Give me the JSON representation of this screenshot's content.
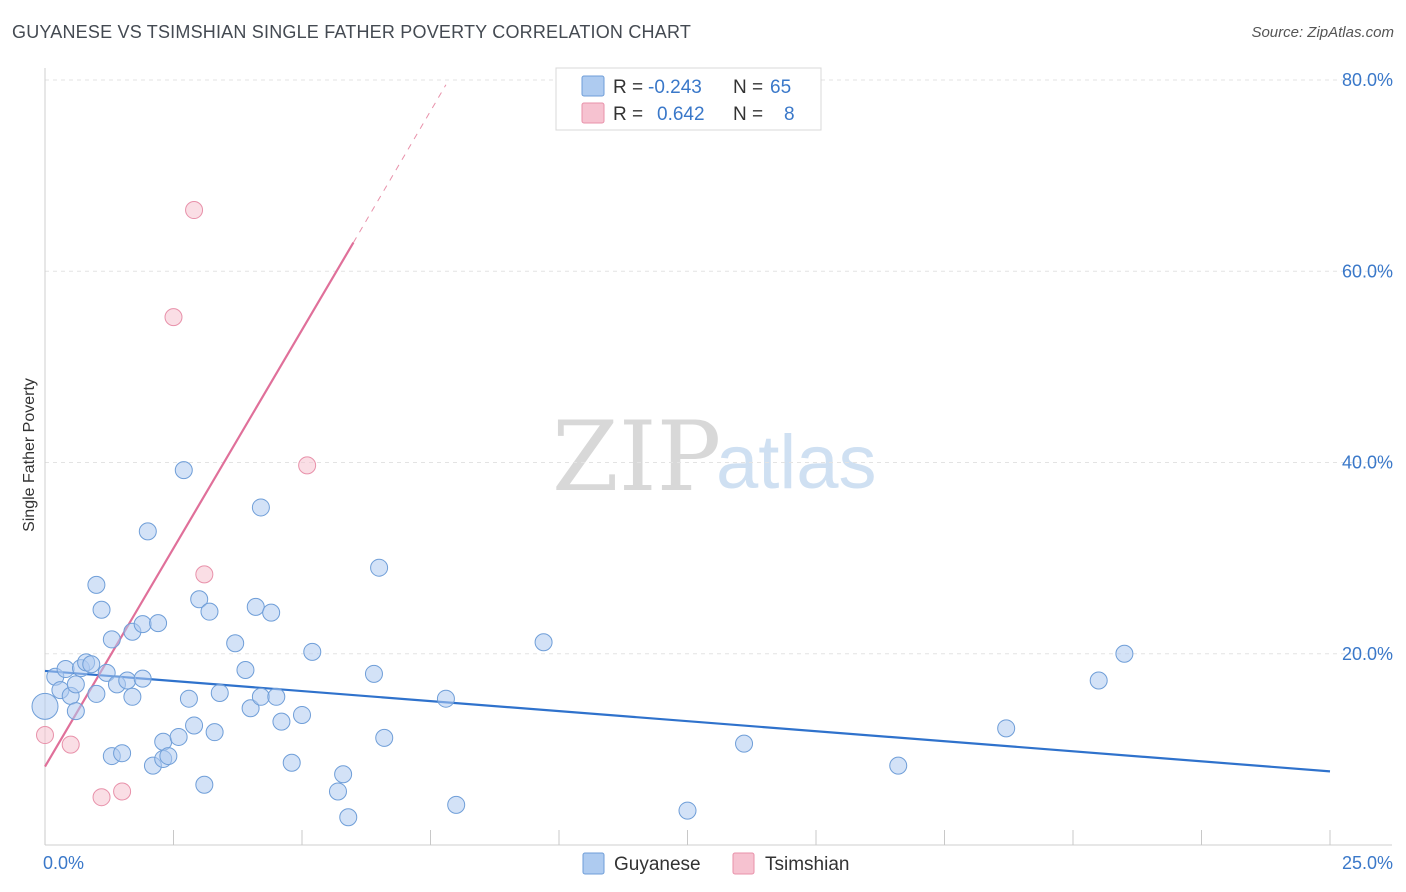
{
  "title": "GUYANESE VS TSIMSHIAN SINGLE FATHER POVERTY CORRELATION CHART",
  "source": "Source: ZipAtlas.com",
  "watermark": {
    "zip": "ZIP",
    "atlas": "atlas"
  },
  "colors": {
    "guyanese_fill": "#aecbf0",
    "guyanese_stroke": "#6f9ed8",
    "guyanese_line": "#2f72cc",
    "tsimshian_fill": "#f6c2d0",
    "tsimshian_stroke": "#e891aa",
    "tsimshian_line": "#e0709a",
    "axis_text": "#3a78c9",
    "grid": "#e3e3e3"
  },
  "legend_box": {
    "rows": [
      {
        "r_label": "R =",
        "r_value": "-0.243",
        "n_label": "N =",
        "n_value": "65"
      },
      {
        "r_label": "R =",
        "r_value": " 0.642",
        "n_label": "N =",
        "n_value": "8"
      }
    ]
  },
  "chart_data": {
    "type": "scatter",
    "title": "GUYANESE VS TSIMSHIAN SINGLE FATHER POVERTY CORRELATION CHART",
    "xlabel": "",
    "ylabel": "Single Father Poverty",
    "xlim": [
      0,
      25
    ],
    "ylim": [
      0,
      80
    ],
    "x_tick_labels": [
      "0.0%",
      "25.0%"
    ],
    "y_tick_labels": [
      "20.0%",
      "40.0%",
      "60.0%",
      "80.0%"
    ],
    "y_ticks": [
      20,
      40,
      60,
      80
    ],
    "grid": true,
    "series": [
      {
        "name": "Guyanese",
        "R": -0.243,
        "N": 65,
        "trend": {
          "x0": 0,
          "y0": 18.2,
          "x1": 25,
          "y1": 7.7
        },
        "points": [
          [
            0.0,
            14.5
          ],
          [
            0.2,
            17.6
          ],
          [
            0.3,
            16.2
          ],
          [
            0.4,
            18.4
          ],
          [
            0.5,
            15.6
          ],
          [
            0.6,
            16.8
          ],
          [
            0.6,
            14.0
          ],
          [
            0.7,
            18.5
          ],
          [
            0.8,
            19.1
          ],
          [
            0.9,
            18.9
          ],
          [
            1.0,
            27.2
          ],
          [
            1.0,
            15.8
          ],
          [
            1.1,
            24.6
          ],
          [
            1.2,
            18.0
          ],
          [
            1.3,
            21.5
          ],
          [
            1.3,
            9.3
          ],
          [
            1.4,
            16.8
          ],
          [
            1.5,
            9.6
          ],
          [
            1.6,
            17.2
          ],
          [
            1.7,
            22.3
          ],
          [
            1.7,
            15.5
          ],
          [
            1.9,
            23.1
          ],
          [
            1.9,
            17.4
          ],
          [
            2.0,
            32.8
          ],
          [
            2.1,
            8.3
          ],
          [
            2.2,
            23.2
          ],
          [
            2.3,
            9.0
          ],
          [
            2.3,
            10.8
          ],
          [
            2.4,
            9.3
          ],
          [
            2.6,
            11.3
          ],
          [
            2.7,
            39.2
          ],
          [
            2.8,
            15.3
          ],
          [
            2.9,
            12.5
          ],
          [
            3.0,
            25.7
          ],
          [
            3.1,
            6.3
          ],
          [
            3.2,
            24.4
          ],
          [
            3.3,
            11.8
          ],
          [
            3.4,
            15.9
          ],
          [
            3.7,
            21.1
          ],
          [
            3.9,
            18.3
          ],
          [
            4.0,
            14.3
          ],
          [
            4.1,
            24.9
          ],
          [
            4.2,
            35.3
          ],
          [
            4.2,
            15.5
          ],
          [
            4.4,
            24.3
          ],
          [
            4.5,
            15.5
          ],
          [
            4.6,
            12.9
          ],
          [
            4.8,
            8.6
          ],
          [
            5.0,
            13.6
          ],
          [
            5.2,
            20.2
          ],
          [
            5.7,
            5.6
          ],
          [
            5.8,
            7.4
          ],
          [
            5.9,
            2.9
          ],
          [
            6.4,
            17.9
          ],
          [
            6.5,
            29.0
          ],
          [
            6.6,
            11.2
          ],
          [
            7.8,
            15.3
          ],
          [
            8.0,
            4.2
          ],
          [
            9.7,
            21.2
          ],
          [
            12.5,
            3.6
          ],
          [
            13.6,
            10.6
          ],
          [
            16.6,
            8.3
          ],
          [
            18.7,
            12.2
          ],
          [
            20.5,
            17.2
          ],
          [
            21.0,
            20.0
          ]
        ]
      },
      {
        "name": "Tsimshian",
        "R": 0.642,
        "N": 8,
        "trend": {
          "x0": 0,
          "y0": 8.2,
          "x1": 6.0,
          "y1": 63.0,
          "dash_to_x": 7.8,
          "dash_to_y": 79.5
        },
        "points": [
          [
            0.0,
            11.5
          ],
          [
            0.5,
            10.5
          ],
          [
            1.1,
            5.0
          ],
          [
            1.5,
            5.6
          ],
          [
            2.5,
            55.2
          ],
          [
            2.9,
            66.4
          ],
          [
            3.1,
            28.3
          ],
          [
            5.1,
            39.7
          ]
        ]
      }
    ]
  },
  "bottom_legend": [
    {
      "label": "Guyanese"
    },
    {
      "label": "Tsimshian"
    }
  ]
}
